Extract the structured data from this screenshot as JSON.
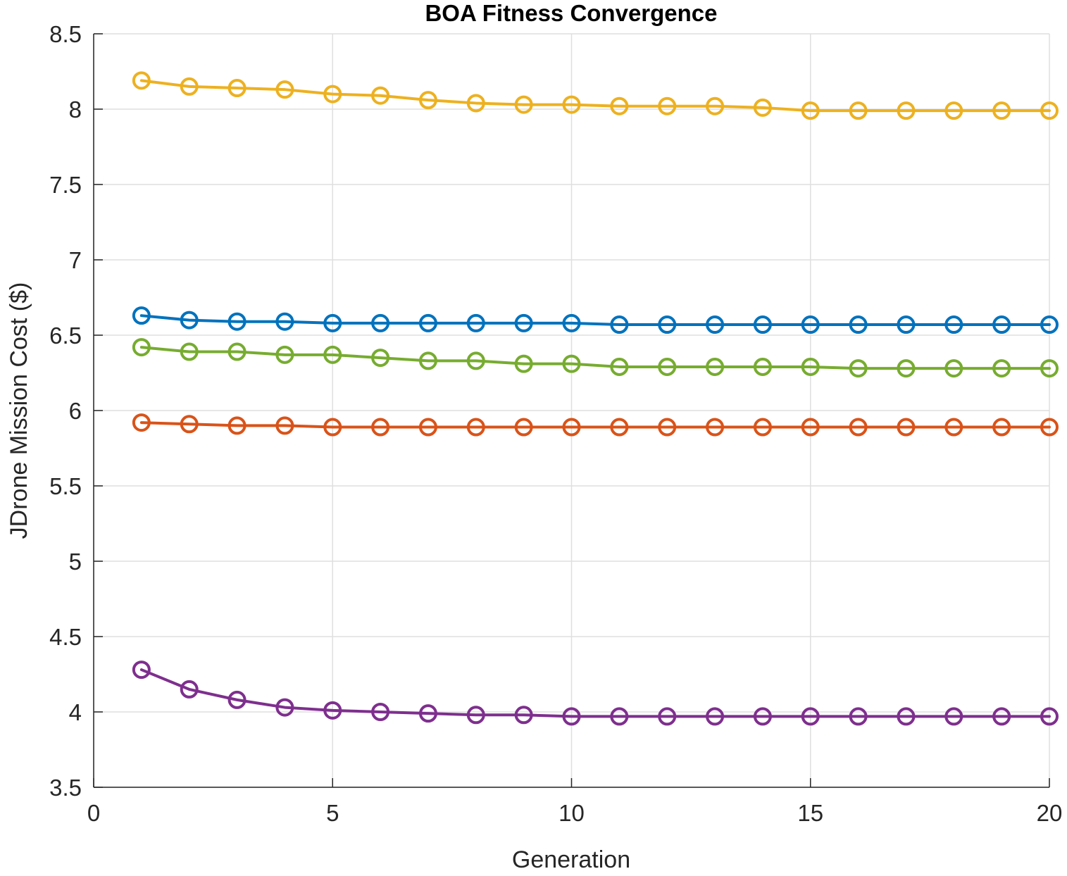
{
  "chart_data": {
    "type": "line",
    "title": "BOA Fitness Convergence",
    "xlabel": "Generation",
    "ylabel": "JDrone Mission Cost ($)",
    "xlim": [
      0,
      20
    ],
    "ylim": [
      3.5,
      8.5
    ],
    "xticks": [
      "0",
      "5",
      "10",
      "15",
      "20"
    ],
    "yticks": [
      "3.5",
      "4",
      "4.5",
      "5",
      "5.5",
      "6",
      "6.5",
      "7",
      "7.5",
      "8",
      "8.5"
    ],
    "grid": true,
    "marker": "circle",
    "x": [
      1,
      2,
      3,
      4,
      5,
      6,
      7,
      8,
      9,
      10,
      11,
      12,
      13,
      14,
      15,
      16,
      17,
      18,
      19,
      20
    ],
    "series": [
      {
        "color": "#0072BD",
        "values": [
          6.63,
          6.6,
          6.59,
          6.59,
          6.58,
          6.58,
          6.58,
          6.58,
          6.58,
          6.58,
          6.57,
          6.57,
          6.57,
          6.57,
          6.57,
          6.57,
          6.57,
          6.57,
          6.57,
          6.57
        ]
      },
      {
        "color": "#D95319",
        "values": [
          5.92,
          5.91,
          5.9,
          5.9,
          5.89,
          5.89,
          5.89,
          5.89,
          5.89,
          5.89,
          5.89,
          5.89,
          5.89,
          5.89,
          5.89,
          5.89,
          5.89,
          5.89,
          5.89,
          5.89
        ]
      },
      {
        "color": "#EDB120",
        "values": [
          8.19,
          8.15,
          8.14,
          8.13,
          8.1,
          8.09,
          8.06,
          8.04,
          8.03,
          8.03,
          8.02,
          8.02,
          8.02,
          8.01,
          7.99,
          7.99,
          7.99,
          7.99,
          7.99,
          7.99
        ]
      },
      {
        "color": "#7E2F8E",
        "values": [
          4.28,
          4.15,
          4.08,
          4.03,
          4.01,
          4.0,
          3.99,
          3.98,
          3.98,
          3.97,
          3.97,
          3.97,
          3.97,
          3.97,
          3.97,
          3.97,
          3.97,
          3.97,
          3.97,
          3.97
        ]
      },
      {
        "color": "#77AC30",
        "values": [
          6.42,
          6.39,
          6.39,
          6.37,
          6.37,
          6.35,
          6.33,
          6.33,
          6.31,
          6.31,
          6.29,
          6.29,
          6.29,
          6.29,
          6.29,
          6.28,
          6.28,
          6.28,
          6.28,
          6.28
        ]
      }
    ]
  }
}
